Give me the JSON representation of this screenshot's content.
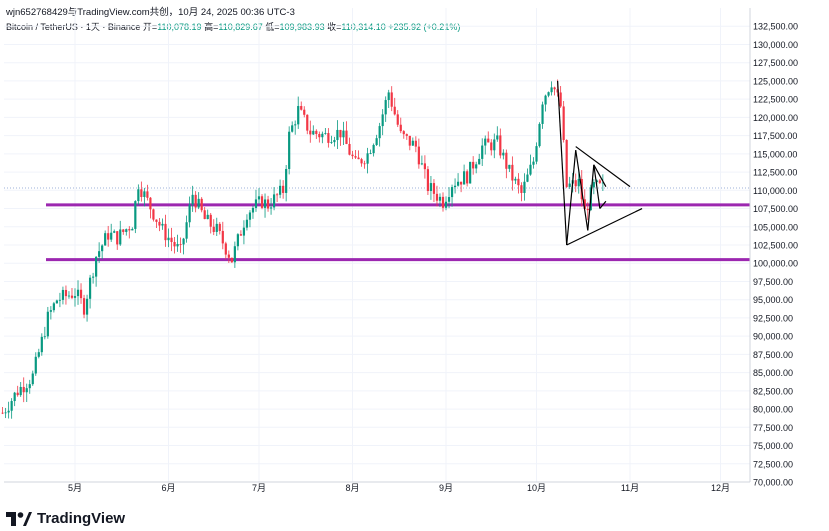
{
  "header": {
    "credit": "wjn652768429与TradingView.com共创，10月 24, 2025 00:36 UTC-3",
    "symbol": "Bitcoin / TetherUS · 1天 · Binance",
    "open_label": "开=",
    "open": "110,078.19",
    "high_label": "高=",
    "high": "110,829.67",
    "low_label": "低=",
    "low": "109,983.93",
    "close_label": "收=",
    "close": "110,314.10",
    "change": "+235.92 (+0.21%)"
  },
  "brand": {
    "name": "TradingView",
    "icon": "tradingview-logo-icon"
  },
  "colors": {
    "up": "#089981",
    "down": "#f23645",
    "level": "#9c27b0",
    "pattern": "#000000",
    "grid": "#f0f3fa"
  },
  "chart_data": {
    "type": "candlestick",
    "title": "",
    "xlabel": "",
    "ylabel": "",
    "ylim": [
      70000,
      135000
    ],
    "grid": true,
    "x_ticks": [
      "5月",
      "6月",
      "7月",
      "8月",
      "9月",
      "10月",
      "11月",
      "12月"
    ],
    "y_ticks": [
      "70,000.00",
      "72,500.00",
      "75,000.00",
      "77,500.00",
      "80,000.00",
      "82,500.00",
      "85,000.00",
      "87,500.00",
      "90,000.00",
      "92,500.00",
      "95,000.00",
      "97,500.00",
      "100,000.00",
      "102,500.00",
      "105,000.00",
      "107,500.00",
      "110,000.00",
      "112,500.00",
      "115,000.00",
      "117,500.00",
      "120,000.00",
      "122,500.00",
      "125,000.00",
      "127,500.00",
      "130,000.00",
      "132,500.00"
    ],
    "current_price": 110314.1,
    "horizontal_levels": [
      108000,
      100500
    ],
    "series_points": [
      [
        "2025-04-07",
        79500
      ],
      [
        "2025-04-12",
        82500
      ],
      [
        "2025-04-17",
        84500
      ],
      [
        "2025-04-22",
        92500
      ],
      [
        "2025-04-25",
        95000
      ],
      [
        "2025-05-01",
        96000
      ],
      [
        "2025-05-04",
        94000
      ],
      [
        "2025-05-08",
        101000
      ],
      [
        "2025-05-12",
        104000
      ],
      [
        "2025-05-15",
        103500
      ],
      [
        "2025-05-20",
        105500
      ],
      [
        "2025-05-22",
        111000
      ],
      [
        "2025-05-25",
        108500
      ],
      [
        "2025-05-30",
        104500
      ],
      [
        "2025-06-05",
        101500
      ],
      [
        "2025-06-09",
        109500
      ],
      [
        "2025-06-13",
        106000
      ],
      [
        "2025-06-17",
        104500
      ],
      [
        "2025-06-22",
        100500
      ],
      [
        "2025-06-27",
        107000
      ],
      [
        "2025-07-02",
        108500
      ],
      [
        "2025-07-04",
        108000
      ],
      [
        "2025-07-09",
        110000
      ],
      [
        "2025-07-11",
        117500
      ],
      [
        "2025-07-14",
        121000
      ],
      [
        "2025-07-18",
        118000
      ],
      [
        "2025-07-23",
        117500
      ],
      [
        "2025-07-28",
        118000
      ],
      [
        "2025-08-02",
        113500
      ],
      [
        "2025-08-06",
        115000
      ],
      [
        "2025-08-10",
        119000
      ],
      [
        "2025-08-13",
        123500
      ],
      [
        "2025-08-17",
        117500
      ],
      [
        "2025-08-22",
        116000
      ],
      [
        "2025-08-26",
        110500
      ],
      [
        "2025-08-31",
        108500
      ],
      [
        "2025-09-03",
        111000
      ],
      [
        "2025-09-08",
        112000
      ],
      [
        "2025-09-13",
        116000
      ],
      [
        "2025-09-18",
        116500
      ],
      [
        "2025-09-22",
        112500
      ],
      [
        "2025-09-26",
        109500
      ],
      [
        "2025-09-30",
        114000
      ],
      [
        "2025-10-03",
        122500
      ],
      [
        "2025-10-06",
        125000
      ],
      [
        "2025-10-09",
        121500
      ],
      [
        "2025-10-11",
        110500
      ],
      [
        "2025-10-15",
        111000
      ],
      [
        "2025-10-17",
        107000
      ],
      [
        "2025-10-20",
        110500
      ],
      [
        "2025-10-23",
        110300
      ]
    ]
  }
}
